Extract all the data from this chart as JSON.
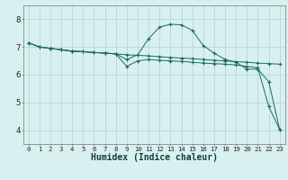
{
  "xlabel": "Humidex (Indice chaleur)",
  "xlim": [
    -0.5,
    23.5
  ],
  "ylim": [
    3.5,
    8.5
  ],
  "yticks": [
    4,
    5,
    6,
    7,
    8
  ],
  "xticks": [
    0,
    1,
    2,
    3,
    4,
    5,
    6,
    7,
    8,
    9,
    10,
    11,
    12,
    13,
    14,
    15,
    16,
    17,
    18,
    19,
    20,
    21,
    22,
    23
  ],
  "bg_color": "#d8f0f0",
  "grid_color": "#b8d8d8",
  "line_color": "#1a6b5a",
  "lines": [
    {
      "x": [
        0,
        1,
        2,
        3,
        4,
        5,
        6,
        7,
        8,
        9,
        10,
        11,
        12,
        13,
        14,
        15,
        16,
        17,
        18,
        19,
        20,
        21,
        22,
        23
      ],
      "y": [
        7.15,
        7.0,
        6.95,
        6.9,
        6.85,
        6.83,
        6.8,
        6.78,
        6.75,
        6.72,
        6.7,
        6.68,
        6.65,
        6.62,
        6.6,
        6.58,
        6.55,
        6.52,
        6.5,
        6.47,
        6.45,
        6.42,
        6.4,
        6.38
      ]
    },
    {
      "x": [
        0,
        1,
        2,
        3,
        4,
        5,
        6,
        7,
        8,
        9,
        10,
        11,
        12,
        13,
        14,
        15,
        16,
        17,
        18,
        19,
        20,
        21,
        22,
        23
      ],
      "y": [
        7.15,
        7.0,
        6.95,
        6.9,
        6.85,
        6.83,
        6.8,
        6.78,
        6.75,
        6.55,
        6.72,
        7.3,
        7.72,
        7.82,
        7.8,
        7.6,
        7.05,
        6.78,
        6.55,
        6.45,
        6.2,
        6.2,
        5.75,
        4.02
      ]
    },
    {
      "x": [
        0,
        1,
        2,
        3,
        4,
        5,
        6,
        7,
        8,
        9,
        10,
        11,
        12,
        13,
        14,
        15,
        16,
        17,
        18,
        19,
        20,
        21,
        22,
        23
      ],
      "y": [
        7.15,
        7.0,
        6.95,
        6.9,
        6.85,
        6.83,
        6.8,
        6.78,
        6.75,
        6.3,
        6.5,
        6.55,
        6.52,
        6.5,
        6.48,
        6.45,
        6.42,
        6.4,
        6.38,
        6.35,
        6.3,
        6.25,
        4.85,
        4.02
      ]
    }
  ]
}
